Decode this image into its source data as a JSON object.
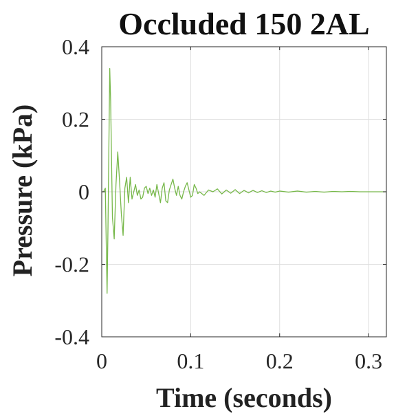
{
  "chart_data": {
    "type": "line",
    "title": "Occluded 150 2AL",
    "xlabel": "Time (seconds)",
    "ylabel": "Pressure (kPa)",
    "xlim": [
      0,
      0.32
    ],
    "ylim": [
      -0.4,
      0.4
    ],
    "xticks": [
      0,
      0.1,
      0.2,
      0.3
    ],
    "xtick_labels": [
      "0",
      "0.1",
      "0.2",
      "0.3"
    ],
    "yticks": [
      -0.4,
      -0.2,
      0,
      0.2,
      0.4
    ],
    "ytick_labels": [
      "-0.4",
      "-0.2",
      "0",
      "0.2",
      "0.4"
    ],
    "grid": true,
    "series": [
      {
        "color": "#77b84a",
        "x": [
          0,
          0.002,
          0.004,
          0.006,
          0.007,
          0.008,
          0.009,
          0.01,
          0.012,
          0.014,
          0.016,
          0.018,
          0.02,
          0.022,
          0.024,
          0.026,
          0.028,
          0.03,
          0.032,
          0.034,
          0.036,
          0.038,
          0.04,
          0.042,
          0.044,
          0.046,
          0.048,
          0.05,
          0.052,
          0.054,
          0.056,
          0.058,
          0.06,
          0.062,
          0.064,
          0.066,
          0.068,
          0.07,
          0.072,
          0.074,
          0.076,
          0.078,
          0.08,
          0.082,
          0.084,
          0.086,
          0.088,
          0.09,
          0.092,
          0.094,
          0.096,
          0.098,
          0.1,
          0.102,
          0.104,
          0.106,
          0.108,
          0.11,
          0.115,
          0.12,
          0.125,
          0.13,
          0.135,
          0.14,
          0.145,
          0.15,
          0.155,
          0.16,
          0.165,
          0.17,
          0.175,
          0.18,
          0.185,
          0.19,
          0.195,
          0.2,
          0.21,
          0.22,
          0.23,
          0.24,
          0.25,
          0.26,
          0.27,
          0.28,
          0.29,
          0.3,
          0.31,
          0.32
        ],
        "y": [
          0,
          0,
          0.01,
          -0.28,
          -0.1,
          0.12,
          0.34,
          0.25,
          -0.07,
          -0.13,
          0.02,
          0.11,
          0.03,
          -0.06,
          -0.12,
          0.01,
          0.04,
          -0.03,
          0.04,
          -0.02,
          0.0,
          0.02,
          -0.01,
          0.005,
          -0.02,
          -0.015,
          0.01,
          0.015,
          -0.005,
          0.01,
          -0.01,
          0.005,
          -0.015,
          0.02,
          -0.005,
          -0.03,
          0.01,
          0.025,
          -0.025,
          -0.03,
          0.005,
          0.02,
          0.035,
          0.01,
          -0.01,
          0.015,
          -0.01,
          -0.02,
          0.0,
          0.015,
          0.025,
          0.005,
          -0.015,
          -0.01,
          0.02,
          0.01,
          -0.005,
          0.0,
          -0.01,
          0.005,
          0.0,
          0.008,
          -0.006,
          0.005,
          -0.004,
          0.006,
          -0.005,
          0.004,
          -0.003,
          0.004,
          -0.002,
          0.003,
          -0.002,
          0.002,
          -0.001,
          0.002,
          -0.001,
          0.002,
          -0.001,
          0.001,
          -0.001,
          0.001,
          0.0,
          0.001,
          0.0,
          0.0,
          0.0,
          0.0
        ]
      }
    ]
  }
}
